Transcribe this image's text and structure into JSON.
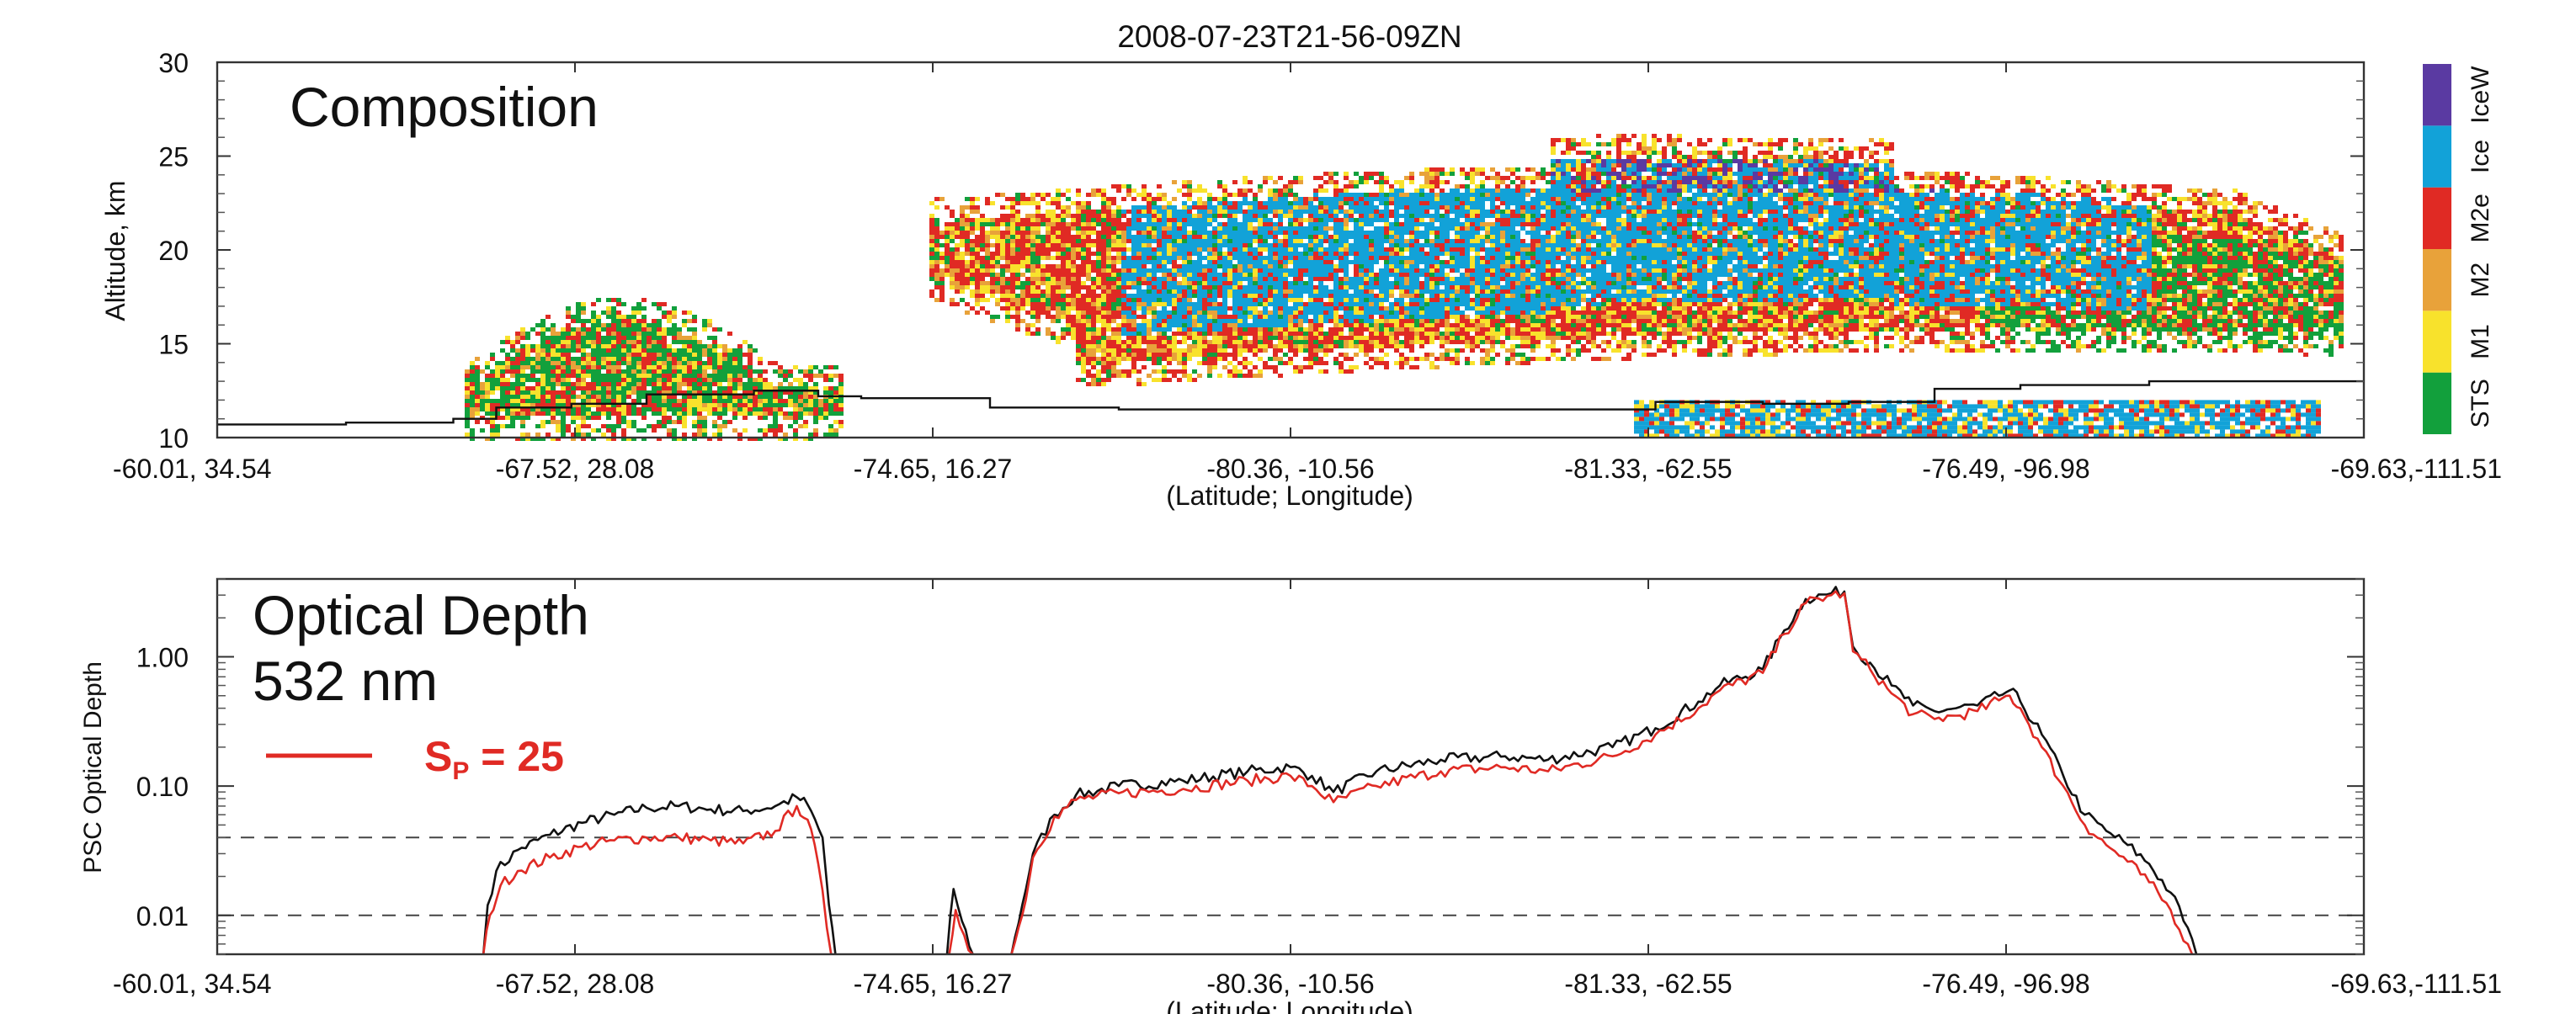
{
  "figure": {
    "title": "2008-07-23T21-56-09ZN"
  },
  "colors": {
    "STS": "#12a03c",
    "M1": "#f8e22c",
    "M2": "#e8a23a",
    "M2e": "#e02a24",
    "Ice": "#12a2d8",
    "IceW": "#5a3aa2",
    "sp_line": "#e02a24",
    "od_line": "#111111"
  },
  "chart_data": [
    {
      "type": "heatmap",
      "title": "Composition",
      "xlabel": "(Latitude; Longitude)",
      "ylabel": "Altitude, km",
      "ylim": [
        10,
        30
      ],
      "yticks": [
        10,
        15,
        20,
        25,
        30
      ],
      "xtick_labels": [
        "-60.01,  34.54",
        "-67.52,  28.08",
        "-74.65,  16.27",
        "-80.36, -10.56",
        "-81.33, -62.55",
        "-76.49, -96.98",
        "-69.63,-111.51"
      ],
      "legend": {
        "placement": "right",
        "categories": [
          "STS",
          "M1",
          "M2",
          "M2e",
          "Ice",
          "IceW"
        ]
      },
      "tropopause_km": [
        [
          0.0,
          10.7
        ],
        [
          0.06,
          10.8
        ],
        [
          0.11,
          11.0
        ],
        [
          0.13,
          11.6
        ],
        [
          0.165,
          11.8
        ],
        [
          0.2,
          12.3
        ],
        [
          0.25,
          12.5
        ],
        [
          0.28,
          12.2
        ],
        [
          0.3,
          12.1
        ],
        [
          0.36,
          11.6
        ],
        [
          0.42,
          11.5
        ],
        [
          0.47,
          11.5
        ],
        [
          0.53,
          11.5
        ],
        [
          0.6,
          11.5
        ],
        [
          0.67,
          11.9
        ],
        [
          0.72,
          11.8
        ],
        [
          0.76,
          11.9
        ],
        [
          0.8,
          12.6
        ],
        [
          0.84,
          12.8
        ],
        [
          0.9,
          13.0
        ],
        [
          1.0,
          13.0
        ]
      ],
      "regions": [
        {
          "name": "cloud-a",
          "x": [
            0.115,
            0.29
          ],
          "alt": [
            10,
            18.5
          ]
        },
        {
          "name": "cloud-b",
          "x": [
            0.33,
            1.0
          ],
          "alt": [
            10,
            27
          ]
        }
      ]
    },
    {
      "type": "line",
      "title": "Optical Depth",
      "subtitle": "532 nm",
      "xlabel": "(Latitude; Longitude)",
      "ylabel": "PSC Optical Depth",
      "y_scale": "log",
      "ylim": [
        0.005,
        4
      ],
      "yticks": [
        0.01,
        0.1,
        1.0
      ],
      "ytick_labels": [
        "0.01",
        "0.10",
        "1.00"
      ],
      "reference_lines": [
        0.01,
        0.04
      ],
      "xtick_labels": [
        "-60.01,  34.54",
        "-67.52,  28.08",
        "-74.65,  16.27",
        "-80.36, -10.56",
        "-81.33, -62.55",
        "-76.49, -96.98",
        "-69.63,-111.51"
      ],
      "legend": {
        "placement": "top-left",
        "label_main": "S",
        "label_sub": "P",
        "label_rest": " = 25"
      },
      "series": [
        {
          "name": "",
          "color": "#111111",
          "segments": [
            [
              [
                0.124,
                0.005
              ],
              [
                0.126,
                0.012
              ],
              [
                0.13,
                0.022
              ],
              [
                0.14,
                0.032
              ],
              [
                0.155,
                0.042
              ],
              [
                0.17,
                0.052
              ],
              [
                0.185,
                0.06
              ],
              [
                0.2,
                0.068
              ],
              [
                0.215,
                0.07
              ],
              [
                0.23,
                0.066
              ],
              [
                0.245,
                0.064
              ],
              [
                0.26,
                0.07
              ],
              [
                0.27,
                0.082
              ],
              [
                0.275,
                0.072
              ],
              [
                0.282,
                0.04
              ],
              [
                0.285,
                0.012
              ],
              [
                0.288,
                0.005
              ]
            ],
            [
              [
                0.34,
                0.005
              ],
              [
                0.343,
                0.016
              ],
              [
                0.347,
                0.009
              ],
              [
                0.352,
                0.005
              ]
            ],
            [
              [
                0.37,
                0.005
              ],
              [
                0.375,
                0.012
              ],
              [
                0.38,
                0.03
              ],
              [
                0.39,
                0.06
              ],
              [
                0.4,
                0.085
              ],
              [
                0.42,
                0.1
              ],
              [
                0.45,
                0.11
              ],
              [
                0.48,
                0.13
              ],
              [
                0.5,
                0.14
              ],
              [
                0.51,
                0.12
              ],
              [
                0.52,
                0.09
              ],
              [
                0.54,
                0.13
              ],
              [
                0.57,
                0.16
              ],
              [
                0.6,
                0.17
              ],
              [
                0.62,
                0.16
              ],
              [
                0.65,
                0.2
              ],
              [
                0.67,
                0.28
              ],
              [
                0.69,
                0.45
              ],
              [
                0.7,
                0.6
              ],
              [
                0.72,
                0.8
              ],
              [
                0.73,
                1.6
              ],
              [
                0.74,
                2.8
              ],
              [
                0.752,
                3.1
              ],
              [
                0.758,
                3.2
              ],
              [
                0.762,
                1.2
              ],
              [
                0.77,
                0.9
              ],
              [
                0.78,
                0.6
              ],
              [
                0.79,
                0.42
              ],
              [
                0.8,
                0.38
              ],
              [
                0.81,
                0.4
              ],
              [
                0.82,
                0.42
              ],
              [
                0.83,
                0.5
              ],
              [
                0.835,
                0.55
              ],
              [
                0.84,
                0.45
              ],
              [
                0.85,
                0.25
              ],
              [
                0.86,
                0.12
              ],
              [
                0.87,
                0.06
              ],
              [
                0.88,
                0.045
              ],
              [
                0.89,
                0.035
              ],
              [
                0.9,
                0.025
              ],
              [
                0.91,
                0.015
              ],
              [
                0.918,
                0.008
              ],
              [
                0.922,
                0.005
              ]
            ]
          ]
        },
        {
          "name": "Sp = 25",
          "color": "#e02a24",
          "segments": [
            [
              [
                0.124,
                0.005
              ],
              [
                0.127,
                0.01
              ],
              [
                0.132,
                0.017
              ],
              [
                0.14,
                0.022
              ],
              [
                0.155,
                0.028
              ],
              [
                0.17,
                0.034
              ],
              [
                0.185,
                0.038
              ],
              [
                0.2,
                0.04
              ],
              [
                0.215,
                0.04
              ],
              [
                0.23,
                0.038
              ],
              [
                0.245,
                0.036
              ],
              [
                0.26,
                0.045
              ],
              [
                0.27,
                0.07
              ],
              [
                0.275,
                0.055
              ],
              [
                0.28,
                0.025
              ],
              [
                0.284,
                0.008
              ],
              [
                0.286,
                0.005
              ]
            ],
            [
              [
                0.341,
                0.005
              ],
              [
                0.344,
                0.011
              ],
              [
                0.348,
                0.007
              ],
              [
                0.352,
                0.005
              ]
            ],
            [
              [
                0.37,
                0.005
              ],
              [
                0.375,
                0.01
              ],
              [
                0.38,
                0.028
              ],
              [
                0.39,
                0.058
              ],
              [
                0.4,
                0.078
              ],
              [
                0.42,
                0.088
              ],
              [
                0.45,
                0.095
              ],
              [
                0.48,
                0.11
              ],
              [
                0.5,
                0.12
              ],
              [
                0.51,
                0.1
              ],
              [
                0.52,
                0.075
              ],
              [
                0.54,
                0.1
              ],
              [
                0.57,
                0.13
              ],
              [
                0.6,
                0.14
              ],
              [
                0.62,
                0.13
              ],
              [
                0.65,
                0.17
              ],
              [
                0.67,
                0.25
              ],
              [
                0.69,
                0.4
              ],
              [
                0.7,
                0.55
              ],
              [
                0.72,
                0.75
              ],
              [
                0.73,
                1.5
              ],
              [
                0.74,
                2.6
              ],
              [
                0.752,
                3.0
              ],
              [
                0.758,
                3.1
              ],
              [
                0.762,
                1.1
              ],
              [
                0.77,
                0.8
              ],
              [
                0.78,
                0.52
              ],
              [
                0.79,
                0.36
              ],
              [
                0.8,
                0.33
              ],
              [
                0.81,
                0.35
              ],
              [
                0.82,
                0.38
              ],
              [
                0.83,
                0.46
              ],
              [
                0.835,
                0.5
              ],
              [
                0.84,
                0.4
              ],
              [
                0.85,
                0.2
              ],
              [
                0.86,
                0.1
              ],
              [
                0.87,
                0.05
              ],
              [
                0.88,
                0.035
              ],
              [
                0.89,
                0.026
              ],
              [
                0.9,
                0.018
              ],
              [
                0.91,
                0.011
              ],
              [
                0.918,
                0.006
              ],
              [
                0.92,
                0.005
              ]
            ]
          ]
        }
      ]
    }
  ]
}
